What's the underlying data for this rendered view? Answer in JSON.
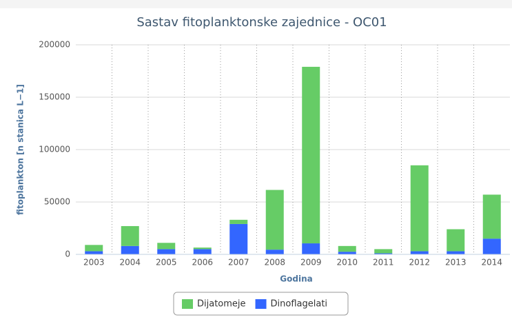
{
  "chart_data": {
    "type": "stacked-bar",
    "title": "Sastav fitoplanktonske zajednice - OC01",
    "x_label": "Godina",
    "y_label": "fitoplankton [n stanica L−1]",
    "categories": [
      "2003",
      "2004",
      "2005",
      "2006",
      "2007",
      "2008",
      "2009",
      "2010",
      "2011",
      "2012",
      "2013",
      "2014"
    ],
    "series": [
      {
        "name": "Dinoflagelati",
        "color": "#3366ff",
        "values": [
          3000,
          8000,
          5000,
          5000,
          29000,
          4500,
          10500,
          2500,
          1000,
          3000,
          3000,
          15000
        ]
      },
      {
        "name": "Dijatomeje",
        "color": "#66cc66",
        "values": [
          6000,
          19000,
          6000,
          1500,
          4000,
          57000,
          168500,
          5500,
          4000,
          82000,
          21000,
          42000
        ]
      }
    ],
    "legend_order": [
      "Dijatomeje",
      "Dinoflagelati"
    ],
    "ylim": [
      0,
      200000
    ],
    "yticks": [
      0,
      50000,
      100000,
      150000,
      200000
    ],
    "grid": true,
    "legend": "bottom"
  }
}
